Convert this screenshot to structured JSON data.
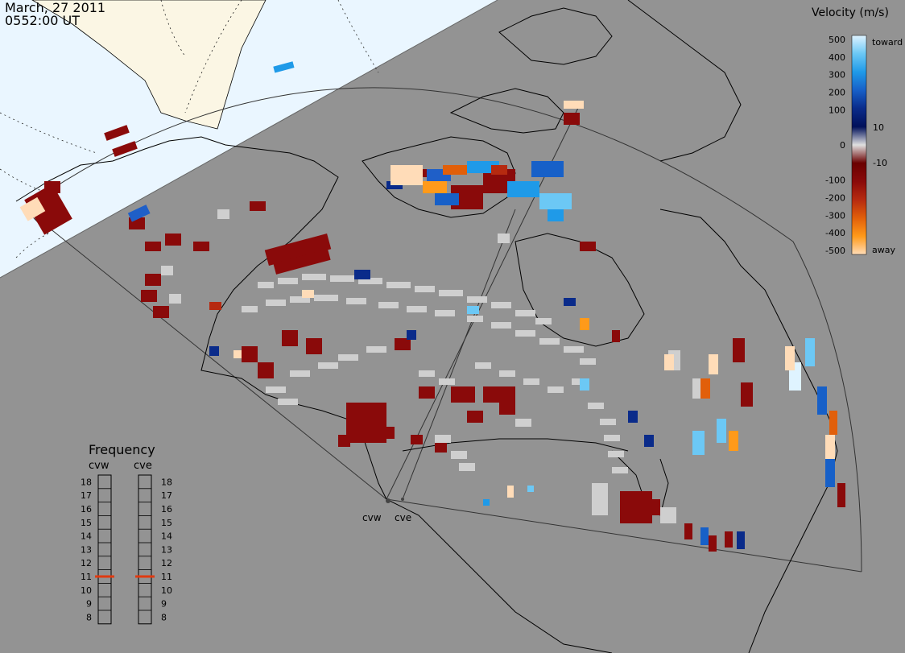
{
  "header": {
    "date": "March, 27 2011",
    "time": "0552:00 UT"
  },
  "colors": {
    "background": "#939393",
    "daylight": "#eaf6ff",
    "land_daylight": "#fbf6e4",
    "ground_scatter": "#cfcfcf",
    "map_line": "#000000"
  },
  "radars": [
    {
      "code": "cvw",
      "label": "cvw"
    },
    {
      "code": "cve",
      "label": "cve"
    }
  ],
  "colorbar": {
    "title": "Velocity (m/s)",
    "ticks": [
      "500",
      "400",
      "300",
      "200",
      "100",
      "10",
      "0",
      "-10",
      "-100",
      "-200",
      "-300",
      "-400",
      "-500"
    ],
    "top_label": "toward",
    "bottom_label": "away",
    "stops": [
      "#dff3ff",
      "#6cc8f5",
      "#1f9ae8",
      "#1760c8",
      "#0a2b8a",
      "#00105a",
      "#e0e0e0",
      "#6a0000",
      "#8a0a0a",
      "#b62a10",
      "#e15f0a",
      "#ff9a1a",
      "#ffdcb8"
    ]
  },
  "frequency_panel": {
    "title": "Frequency",
    "columns": [
      {
        "label": "cvw",
        "value_mhz": 11
      },
      {
        "label": "cve",
        "value_mhz": 11
      }
    ],
    "ticks": [
      "18",
      "17",
      "16",
      "15",
      "14",
      "13",
      "12",
      "11",
      "10",
      "9",
      "8"
    ],
    "marker_color": "#e03a10"
  }
}
